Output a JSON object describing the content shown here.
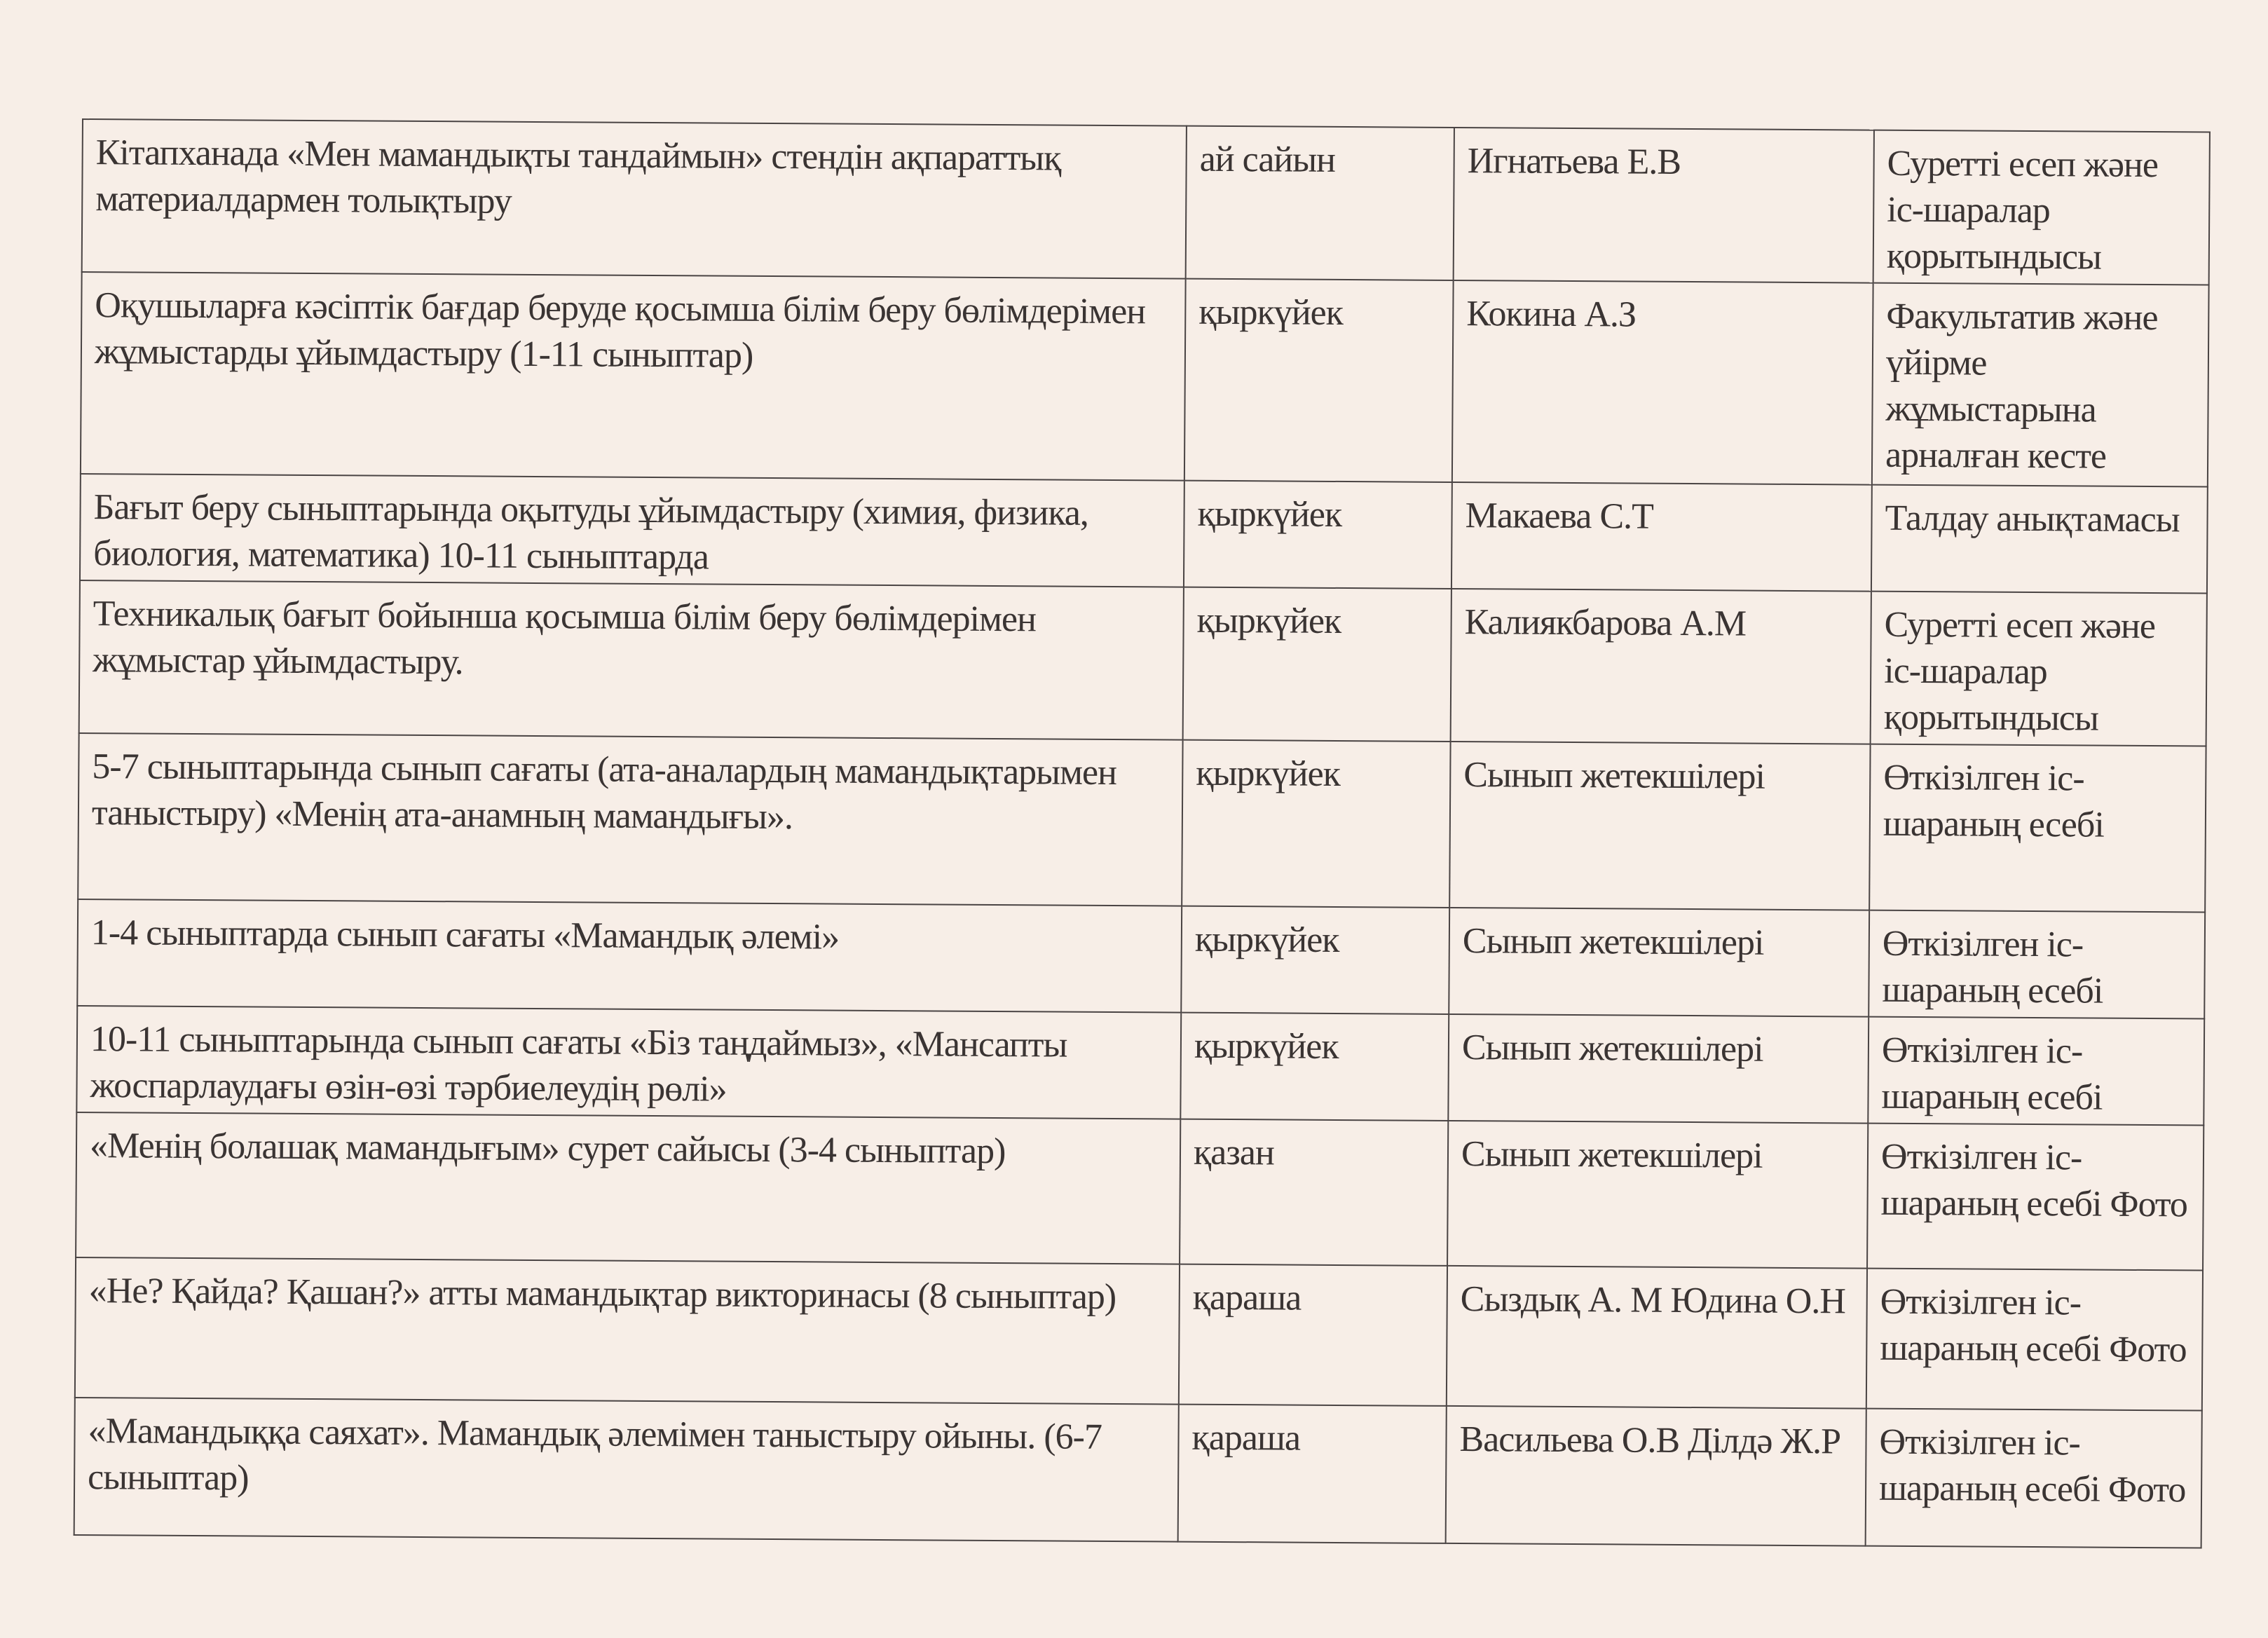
{
  "rows": [
    {
      "event": "Кітапханада «Мен мамандықты тандаймын» стендін ақпараттық материалдармен толықтыру",
      "date": "ай сайын",
      "responsible": "Игнатьева Е.В",
      "result": "Суретті есеп және іс-шаралар қорытындысы"
    },
    {
      "event": "Оқушыларға кәсіптік бағдар беруде қосымша білім беру бөлімдерімен жұмыстарды ұйымдастыру  (1-11 сыныптар)",
      "date": "қыркүйек",
      "responsible": "Кокина А.З",
      "result": "Факультатив және үйірме жұмыстарына арналған кесте"
    },
    {
      "event": "Бағыт беру сыныптарында оқытуды ұйымдастыру (химия, физика, биология, математика) 10-11 сыныптарда",
      "date": "қыркүйек",
      "responsible": "Макаева С.Т",
      "result": "Талдау анықтамасы"
    },
    {
      "event": "Техникалық бағыт бойынша қосымша білім беру бөлімдерімен жұмыстар ұйымдастыру.",
      "date": "қыркүйек",
      "responsible": "Калиякбарова А.М",
      "result": "Суретті есеп және іс-шаралар қорытындысы"
    },
    {
      "event": "5-7 сыныптарында сынып сағаты (ата-аналардың мамандықтарымен таныстыру) «Менің ата-анамның мамандығы».",
      "date": "қыркүйек",
      "responsible": "Сынып жетекшілері",
      "result": "Өткізілген іс-шараның есебі"
    },
    {
      "event": "1-4  сыныптарда сынып сағаты  «Мамандық әлемі»",
      "date": "қыркүйек",
      "responsible": "Сынып жетекшілері",
      "result": "Өткізілген іс-шараның есебі"
    },
    {
      "event": "10-11 сыныптарында сынып сағаты  «Біз таңдаймыз», «Мансапты жоспарлаудағы өзін-өзі тәрбиелеудің рөлі»",
      "date": "қыркүйек",
      "responsible": "Сынып жетекшілері",
      "result": "Өткізілген іс-шараның есебі"
    },
    {
      "event": "«Менің болашақ мамандығым» сурет сайысы (3-4 сыныптар)",
      "date": "қазан",
      "responsible": "Сынып жетекшілері",
      "result": "Өткізілген іс-шараның есебі Фото"
    },
    {
      "event": "«Не? Қайда? Қашан?» атты мамандықтар  викторинасы (8 сыныптар)",
      "date": "қараша",
      "responsible": "Сыздық А. М Юдина О.Н",
      "result": "Өткізілген іс-шараның есебі Фото"
    },
    {
      "event": "«Мамандыққа саяхат». Мамандық әлемімен таныстыру ойыны.  (6-7 сыныптар)",
      "date": "қараша",
      "responsible": "Васильева О.В Ділдә Ж.Р",
      "result": "Өткізілген іс-шараның есебі Фото"
    }
  ]
}
